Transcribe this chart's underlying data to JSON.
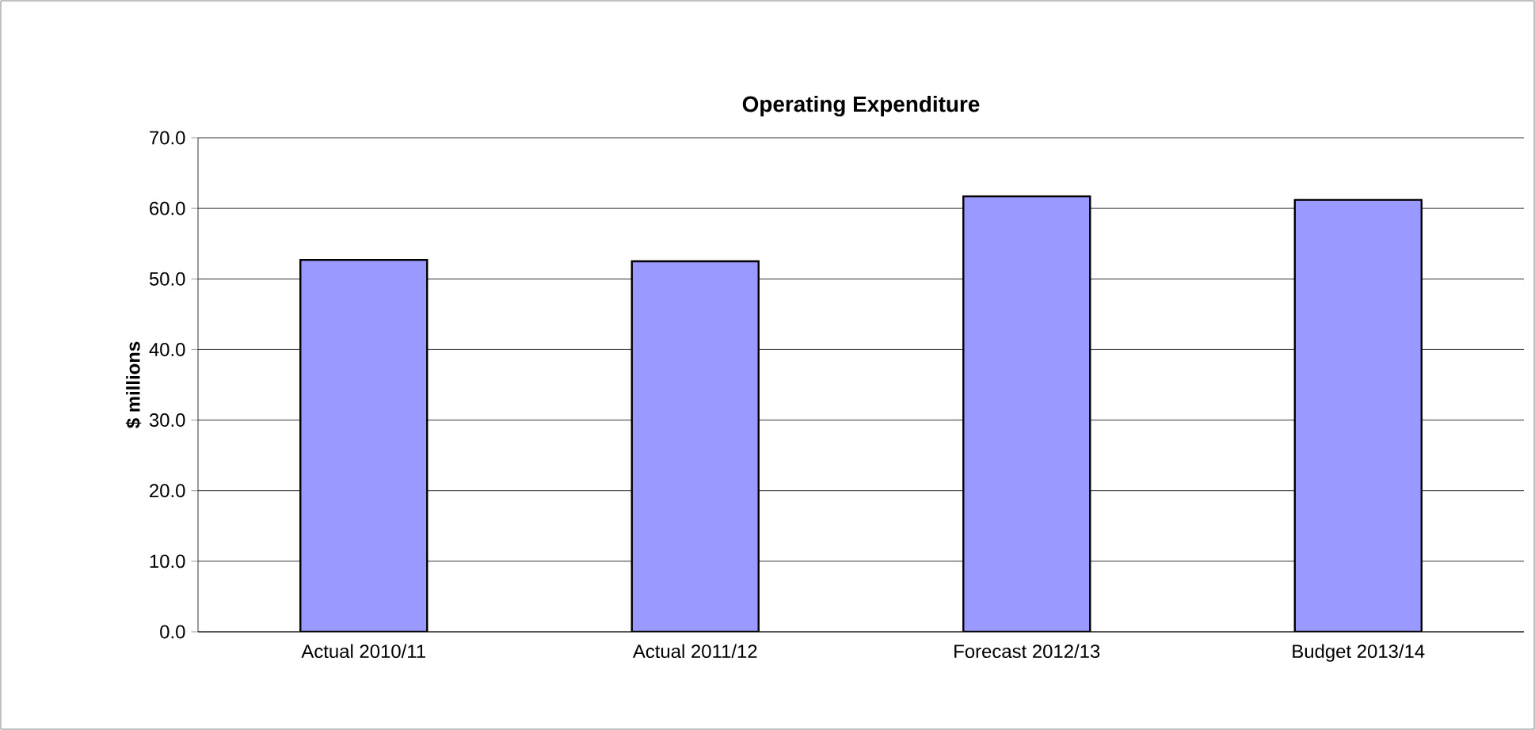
{
  "chart_data": {
    "type": "bar",
    "title": "Operating Expenditure",
    "ylabel": "$ millions",
    "categories": [
      "Actual 2010/11",
      "Actual 2011/12",
      "Forecast 2012/13",
      "Budget 2013/14"
    ],
    "values": [
      52.7,
      52.5,
      61.7,
      61.2
    ],
    "color": "#9999ff",
    "ylim": [
      0,
      70
    ],
    "yticks": [
      {
        "value": 0,
        "label": "0.0"
      },
      {
        "value": 10,
        "label": "10.0"
      },
      {
        "value": 20,
        "label": "20.0"
      },
      {
        "value": 30,
        "label": "30.0"
      },
      {
        "value": 40,
        "label": "40.0"
      },
      {
        "value": 50,
        "label": "50.0"
      },
      {
        "value": 60,
        "label": "60.0"
      },
      {
        "value": 70,
        "label": "70.0"
      }
    ],
    "grid": "y"
  }
}
